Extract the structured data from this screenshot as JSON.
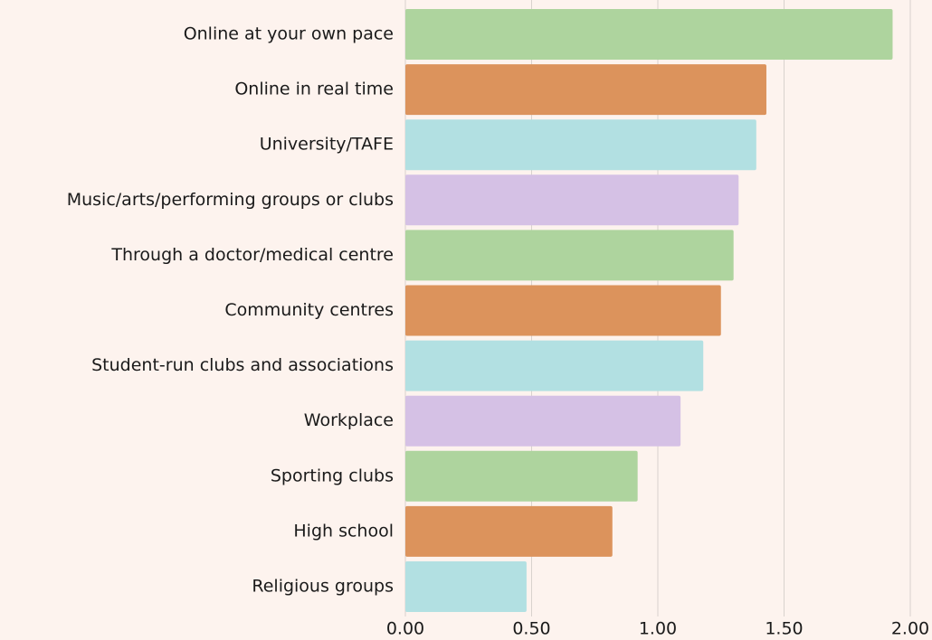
{
  "chart_data": {
    "type": "barh",
    "categories": [
      "Online at your own pace",
      "Online in real time",
      "University/TAFE",
      "Music/arts/performing groups or clubs",
      "Through a doctor/medical centre",
      "Community centres",
      "Student-run clubs and associations",
      "Workplace",
      "Sporting clubs",
      "High school",
      "Religious groups"
    ],
    "values": [
      1.93,
      1.43,
      1.39,
      1.32,
      1.3,
      1.25,
      1.18,
      1.09,
      0.92,
      0.82,
      0.48
    ],
    "colors": [
      "#aed49e",
      "#dc935c",
      "#b2e0e2",
      "#d5c1e5",
      "#aed49e",
      "#dc935c",
      "#b2e0e2",
      "#d5c1e5",
      "#aed49e",
      "#dc935c",
      "#b2e0e2"
    ],
    "xlim": [
      0,
      2
    ],
    "xticks": [
      {
        "value": 0,
        "label": "0.00"
      },
      {
        "value": 0.5,
        "label": "0.50"
      },
      {
        "value": 1,
        "label": "1.00"
      },
      {
        "value": 1.5,
        "label": "1.50"
      },
      {
        "value": 2,
        "label": "2.00"
      }
    ],
    "grid": true
  }
}
